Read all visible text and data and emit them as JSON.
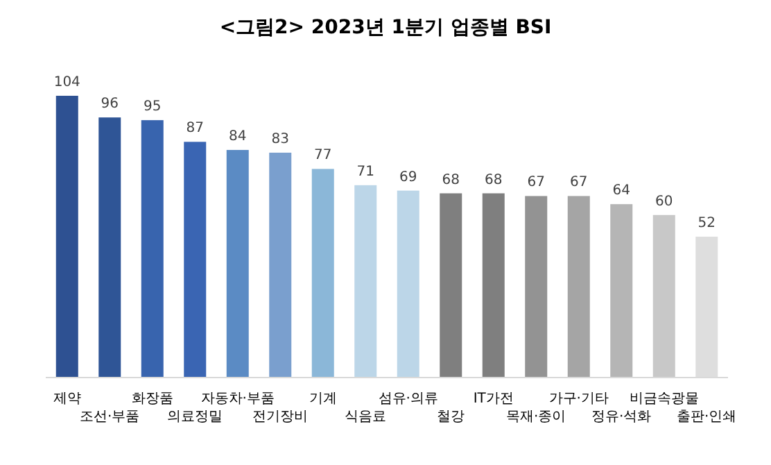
{
  "chart_data": {
    "type": "bar",
    "title": "<그림2> 2023년 1분기 업종별 BSI",
    "categories": [
      "제약",
      "조선·부품",
      "화장품",
      "의료정밀",
      "자동차·부품",
      "전기장비",
      "기계",
      "식음료",
      "섬유·의류",
      "철강",
      "IT가전",
      "목재·종이",
      "가구·기타",
      "정유·석화",
      "비금속광물",
      "출판·인쇄"
    ],
    "values": [
      104,
      96,
      95,
      87,
      84,
      83,
      77,
      71,
      69,
      68,
      68,
      67,
      67,
      64,
      60,
      52
    ],
    "colors": [
      "#2e5192",
      "#2f5596",
      "#3864ae",
      "#3a65b3",
      "#5b8bc4",
      "#7a9fce",
      "#8bb7d8",
      "#bcd6e8",
      "#bcd6e8",
      "#7f7f7f",
      "#7f7f7f",
      "#939393",
      "#a5a5a5",
      "#b5b5b5",
      "#c8c8c8",
      "#dedede"
    ],
    "data_labels": true
  }
}
